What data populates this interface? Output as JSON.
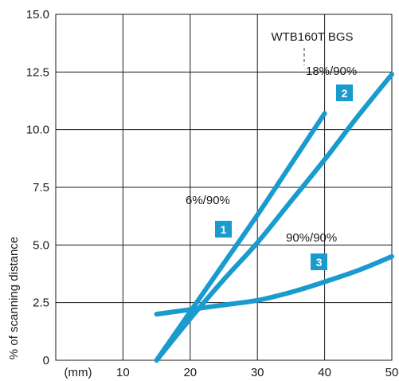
{
  "chart_data": {
    "type": "line",
    "title": "",
    "xlabel": "",
    "ylabel": "% of scanning distance",
    "x_unit_label": "(mm)",
    "xlim": [
      0,
      50
    ],
    "ylim": [
      0,
      15
    ],
    "x_ticks": [
      {
        "value": 10,
        "label": "10"
      },
      {
        "value": 20,
        "label": "20"
      },
      {
        "value": 30,
        "label": "30"
      },
      {
        "value": 40,
        "label": "40"
      },
      {
        "value": 50,
        "label": "50"
      }
    ],
    "y_ticks": [
      {
        "value": 0,
        "label": "0"
      },
      {
        "value": 2.5,
        "label": "2.5"
      },
      {
        "value": 5,
        "label": "5.0"
      },
      {
        "value": 7.5,
        "label": "7.5"
      },
      {
        "value": 10,
        "label": "10.0"
      },
      {
        "value": 12.5,
        "label": "12.5"
      },
      {
        "value": 15,
        "label": "15.0"
      }
    ],
    "grid": true,
    "line_color": "#1a9bd0",
    "badge_color": "#1a9bd0",
    "annotation": "WTB160T BGS",
    "series": [
      {
        "badge": "1",
        "label": "6%/90%",
        "x": [
          15,
          20,
          25,
          30,
          35,
          40
        ],
        "y": [
          0,
          2.1,
          4.2,
          6.3,
          8.5,
          10.7
        ]
      },
      {
        "badge": "2",
        "label": "18%/90%",
        "x": [
          15,
          20,
          25,
          30,
          35,
          40,
          45,
          50
        ],
        "y": [
          0,
          1.8,
          3.5,
          5.1,
          6.9,
          8.7,
          10.6,
          12.4
        ]
      },
      {
        "badge": "3",
        "label": "90%/90%",
        "x": [
          15,
          20,
          25,
          30,
          35,
          40,
          45,
          50
        ],
        "y": [
          2.0,
          2.2,
          2.4,
          2.6,
          2.95,
          3.4,
          3.9,
          4.5
        ]
      }
    ]
  }
}
